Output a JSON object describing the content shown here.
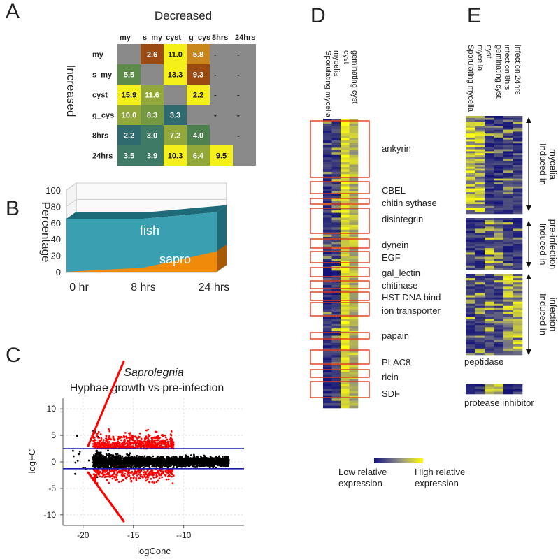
{
  "panels": {
    "a": "A",
    "b": "B",
    "c": "C",
    "d": "D",
    "e": "E"
  },
  "chart_data": [
    {
      "type": "heatmap",
      "panel": "A",
      "title": "Decreased",
      "ylabel": "Increased",
      "columns": [
        "my",
        "s_my",
        "cyst",
        "g_cys",
        "8hrs",
        "24hrs"
      ],
      "rows": [
        "my",
        "s_my",
        "cyst",
        "g_cys",
        "8hrs",
        "24hrs"
      ],
      "cells": [
        [
          "",
          "2.6",
          "11.0",
          "5.8",
          "-",
          "-"
        ],
        [
          "5.5",
          "",
          "13.3",
          "9.3",
          "-",
          "-"
        ],
        [
          "15.9",
          "11.6",
          "",
          "2.2",
          "-",
          "-"
        ],
        [
          "10.0",
          "8.3",
          "3.3",
          "",
          "-",
          "-"
        ],
        [
          "2.2",
          "3.0",
          "7.2",
          "4.0",
          "",
          "-"
        ],
        [
          "3.5",
          "3.9",
          "10.3",
          "6.4",
          "9.5",
          ""
        ]
      ],
      "cell_colors": [
        [
          "#8a8a8a",
          "#9b4a12",
          "#f5ef1a",
          "#c8861c",
          "#8a8a8a",
          "#8a8a8a"
        ],
        [
          "#5e8a4a",
          "#8a8a8a",
          "#f5ef1a",
          "#9b4a12",
          "#8a8a8a",
          "#8a8a8a"
        ],
        [
          "#f5ef1a",
          "#93a83a",
          "#8a8a8a",
          "#f5ef1a",
          "#8a8a8a",
          "#8a8a8a"
        ],
        [
          "#93a83a",
          "#73983f",
          "#2e6a6e",
          "#8a8a8a",
          "#8a8a8a",
          "#8a8a8a"
        ],
        [
          "#2e6a6e",
          "#3e7a66",
          "#93a83a",
          "#4e8050",
          "#8a8a8a",
          "#8a8a8a"
        ],
        [
          "#3e7a66",
          "#3e7a66",
          "#f5ef1a",
          "#93a83a",
          "#f5ef1a",
          "#8a8a8a"
        ]
      ]
    },
    {
      "type": "area",
      "panel": "B",
      "ylabel": "Percentage",
      "categories": [
        "0 hr",
        "8 hrs",
        "24 hrs"
      ],
      "series": [
        {
          "name": "sapro",
          "values": [
            0,
            5,
            25
          ],
          "color": "#f08a0a"
        },
        {
          "name": "fish",
          "values": [
            65,
            65,
            73
          ],
          "color": "#3a9fb0"
        }
      ],
      "ylim": [
        0,
        100
      ],
      "yticks": [
        "0",
        "20",
        "40",
        "60",
        "80",
        "100"
      ]
    },
    {
      "type": "scatter",
      "panel": "C",
      "title": "Saprolegnia",
      "subtitle": "Hyphae growth vs pre-infection",
      "xlabel": "logConc",
      "ylabel": "logFC",
      "xticks": [
        "-20",
        "-15",
        "--10"
      ],
      "xtick_values": [
        -20,
        -15,
        -10
      ],
      "yticks": [
        "10",
        "5",
        "0",
        "-5",
        "-10"
      ],
      "ytick_values": [
        10,
        5,
        0,
        -5,
        -10
      ],
      "xlim": [
        -22,
        -4
      ],
      "ylim": [
        -12,
        12
      ],
      "hlines": [
        2.5,
        -1.3
      ],
      "hline_color": "#1a1ab0",
      "point_colors": {
        "ns": "#000000",
        "sig": "#ff0000"
      },
      "grid": true
    },
    {
      "type": "heatmap",
      "panel": "D",
      "columns": [
        "Sporulating mycelia",
        "mycelia",
        "geminating cyst",
        "cyst"
      ],
      "gene_families": [
        "ankyrin",
        "CBEL",
        "chitin sythase",
        "disintegrin",
        "dynein",
        "EGF",
        "gal_lectin",
        "chitinase",
        "HST DNA bind",
        "ion transporter",
        "papain",
        "PLAC8",
        "ricin",
        "SDF"
      ],
      "box_color": "#e03a1a",
      "color_scale": {
        "low": "#141478",
        "high": "#ffff10",
        "low_label": "Low relative expression",
        "high_label": "High relative expression"
      }
    },
    {
      "type": "heatmap",
      "panel": "E",
      "columns": [
        "Sporulating mycelia",
        "mycelia",
        "geminating cyst",
        "cyst",
        "infection 8hrs",
        "infection 24hrs"
      ],
      "groups": [
        "Induced in mycelia",
        "Induced in pre-infection",
        "Induced in infection"
      ],
      "labels": [
        "peptidase",
        "protease inhibitor"
      ]
    }
  ],
  "legend": {
    "low_line1": "Low relative",
    "low_line2": "expression",
    "high_line1": "High relative",
    "high_line2": "expression"
  }
}
